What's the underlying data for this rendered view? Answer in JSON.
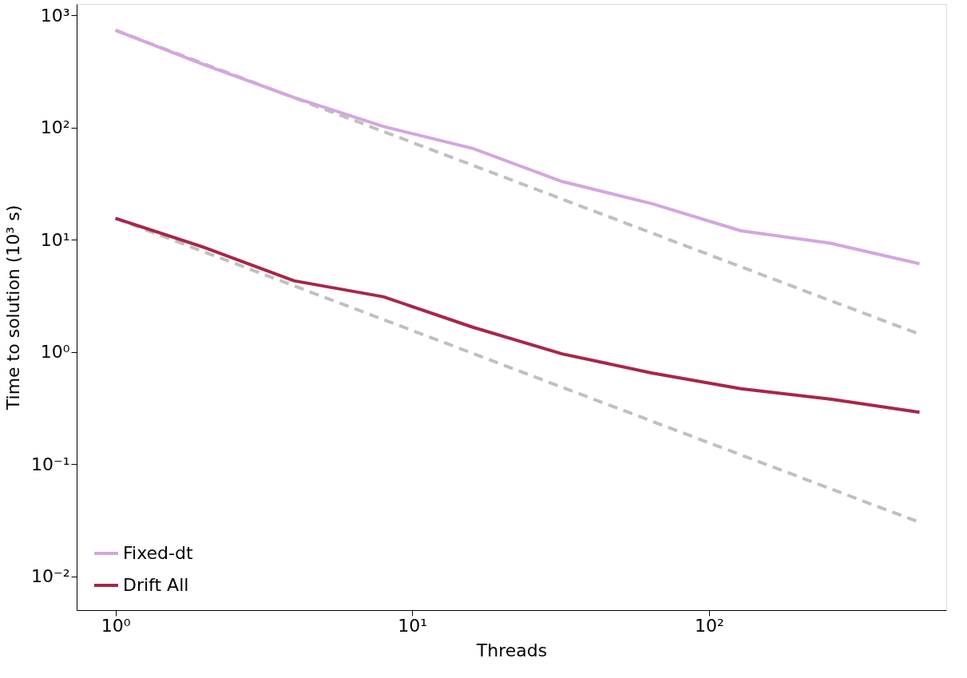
{
  "chart_data": {
    "type": "line",
    "xlabel": "Threads",
    "ylabel": "Time to solution (10³ s)",
    "log": "xy",
    "legend": "bottom left",
    "line_style": "solid",
    "marker": "none",
    "x": [
      1,
      2,
      4,
      8,
      16,
      32,
      64,
      128,
      256,
      512
    ],
    "xlim": [
      0.74,
      630
    ],
    "ylim": [
      0.005,
      1260
    ],
    "xticks": [
      {
        "value": 1,
        "label": "10⁰"
      },
      {
        "value": 10,
        "label": "10¹"
      },
      {
        "value": 100,
        "label": "10²"
      }
    ],
    "yticks": [
      {
        "value": 0.01,
        "label": "10⁻²"
      },
      {
        "value": 0.1,
        "label": "10⁻¹"
      },
      {
        "value": 1,
        "label": "10⁰"
      },
      {
        "value": 10,
        "label": "10¹"
      },
      {
        "value": 100,
        "label": "10²"
      },
      {
        "value": 1000,
        "label": "10³"
      }
    ],
    "series": [
      {
        "name": "Fixed-dt",
        "color": "#d4a6e0",
        "values": [
          735,
          360,
          185,
          102,
          65,
          33,
          21,
          12,
          9.3,
          6.1
        ]
      },
      {
        "name": "Drift All",
        "color": "#a8264a",
        "values": [
          15.5,
          8.5,
          4.3,
          3.1,
          1.66,
          0.96,
          0.65,
          0.47,
          0.38,
          0.29
        ]
      },
      {
        "color": "#c0c0c0",
        "line_style": "dashed",
        "values": [
          735,
          368,
          184,
          92,
          46,
          23,
          11.5,
          5.74,
          2.87,
          1.44
        ]
      },
      {
        "color": "#c0c0c0",
        "line_style": "dashed",
        "values": [
          15.5,
          7.75,
          3.88,
          1.94,
          0.97,
          0.484,
          0.242,
          0.121,
          0.0605,
          0.0303
        ]
      }
    ]
  }
}
